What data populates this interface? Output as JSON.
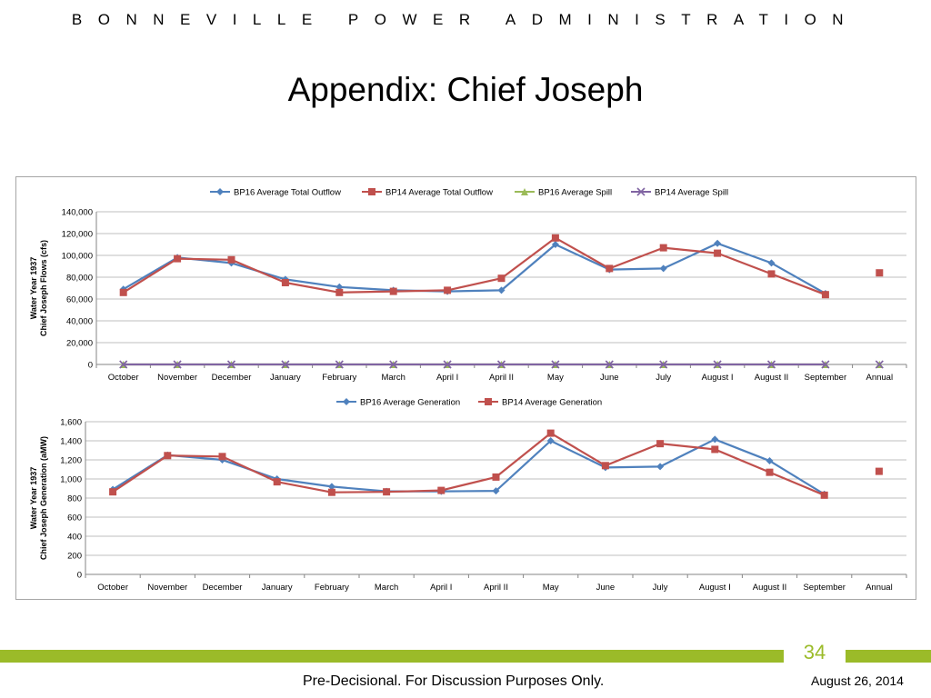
{
  "header": {
    "organization": "BONNEVILLE POWER ADMINISTRATION"
  },
  "slide": {
    "title": "Appendix:  Chief Joseph",
    "page_number": "34",
    "footer_note": "Pre-Decisional.  For Discussion Purposes Only.",
    "date": "August 26, 2014"
  },
  "colors": {
    "accent_green": "#9bbb29",
    "bp16_blue": "#4f81bd",
    "bp14_red": "#c0504d",
    "spill_green": "#9bbb59",
    "spill_purple": "#8064a2"
  },
  "chart_data": [
    {
      "type": "line",
      "ylabel": [
        "Water Year 1937",
        "Chief Joseph Flows (cfs)"
      ],
      "categories": [
        "October",
        "November",
        "December",
        "January",
        "February",
        "March",
        "April I",
        "April II",
        "May",
        "June",
        "July",
        "August I",
        "August II",
        "September",
        "Annual"
      ],
      "ylim": [
        0,
        140000
      ],
      "yticks": [
        0,
        20000,
        40000,
        60000,
        80000,
        100000,
        120000,
        140000
      ],
      "ytick_labels": [
        "0",
        "20,000",
        "40,000",
        "60,000",
        "80,000",
        "100,000",
        "120,000",
        "140,000"
      ],
      "grid": true,
      "legend_position": "top",
      "series": [
        {
          "name": "BP16 Average Total Outflow",
          "color": "#4f81bd",
          "marker": "diamond",
          "values": [
            69000,
            98000,
            93000,
            78000,
            71000,
            68000,
            67000,
            68000,
            110000,
            87000,
            88000,
            111000,
            93000,
            65000,
            null
          ]
        },
        {
          "name": "BP14 Average Total Outflow",
          "color": "#c0504d",
          "marker": "square",
          "values": [
            66000,
            97000,
            96000,
            75000,
            66000,
            67000,
            68000,
            79000,
            116000,
            88000,
            107000,
            102000,
            83000,
            64000,
            84000
          ]
        },
        {
          "name": "BP16 Average Spill",
          "color": "#9bbb59",
          "marker": "triangle",
          "values": [
            0,
            0,
            0,
            0,
            0,
            0,
            0,
            0,
            0,
            0,
            0,
            0,
            0,
            0,
            0
          ]
        },
        {
          "name": "BP14 Average Spill",
          "color": "#8064a2",
          "marker": "x",
          "values": [
            0,
            0,
            0,
            0,
            0,
            0,
            0,
            0,
            0,
            0,
            0,
            0,
            0,
            0,
            0
          ]
        }
      ]
    },
    {
      "type": "line",
      "ylabel": [
        "Water Year 1937",
        "Chief Joseph Generation (aMW)"
      ],
      "categories": [
        "October",
        "November",
        "December",
        "January",
        "February",
        "March",
        "April I",
        "April II",
        "May",
        "June",
        "July",
        "August I",
        "August II",
        "September",
        "Annual"
      ],
      "ylim": [
        0,
        1600
      ],
      "yticks": [
        0,
        200,
        400,
        600,
        800,
        1000,
        1200,
        1400,
        1600
      ],
      "ytick_labels": [
        "0",
        "200",
        "400",
        "600",
        "800",
        "1,000",
        "1,200",
        "1,400",
        "1,600"
      ],
      "grid": true,
      "legend_position": "top",
      "series": [
        {
          "name": "BP16 Average Generation",
          "color": "#4f81bd",
          "marker": "diamond",
          "values": [
            890,
            1250,
            1200,
            1000,
            920,
            870,
            870,
            875,
            1400,
            1120,
            1130,
            1415,
            1190,
            840,
            null
          ]
        },
        {
          "name": "BP14 Average Generation",
          "color": "#c0504d",
          "marker": "square",
          "values": [
            865,
            1245,
            1235,
            970,
            860,
            865,
            880,
            1020,
            1480,
            1140,
            1370,
            1310,
            1070,
            830,
            1080
          ]
        }
      ]
    }
  ]
}
